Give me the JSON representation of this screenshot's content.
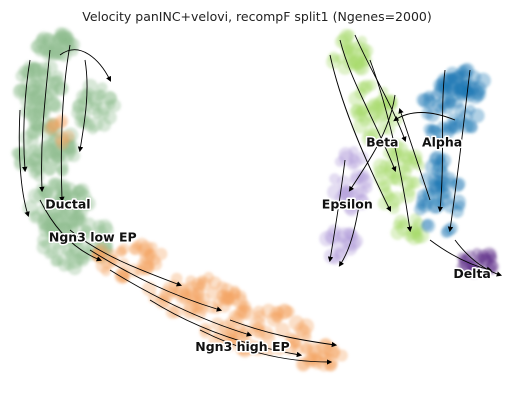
{
  "chart_data": {
    "type": "scatter",
    "title": "Velocity panINC+velovi, recompF split1 (Ngenes=2000)",
    "xlabel": "",
    "ylabel": "",
    "axes_visible": false,
    "grid": false,
    "legend": "none (labels drawn on clusters)",
    "overlay": "velocity streamlines with arrowheads",
    "xlim": [
      0,
      100
    ],
    "ylim": [
      0,
      100
    ],
    "clusters": [
      {
        "name": "Ductal",
        "label": "Ductal",
        "color": "#8fbc8f",
        "centroid": [
          12,
          52
        ]
      },
      {
        "name": "Ngn3 low EP",
        "label": "Ngn3 low EP",
        "color": "#8fbc8f",
        "centroid": [
          17,
          43
        ]
      },
      {
        "name": "Ngn3 high EP",
        "label": "Ngn3 high EP",
        "color": "#f4a460",
        "centroid": [
          47,
          13
        ]
      },
      {
        "name": "Beta",
        "label": "Beta",
        "color": "#a6d96a",
        "centroid": [
          75,
          69
        ]
      },
      {
        "name": "Alpha",
        "label": "Alpha",
        "color": "#1f77b4",
        "centroid": [
          87,
          69
        ]
      },
      {
        "name": "Epsilon",
        "label": "Epsilon",
        "color": "#b39ddb",
        "centroid": [
          68,
          52
        ]
      },
      {
        "name": "Delta",
        "label": "Delta",
        "color": "#5b2a86",
        "centroid": [
          93,
          33
        ]
      }
    ]
  }
}
